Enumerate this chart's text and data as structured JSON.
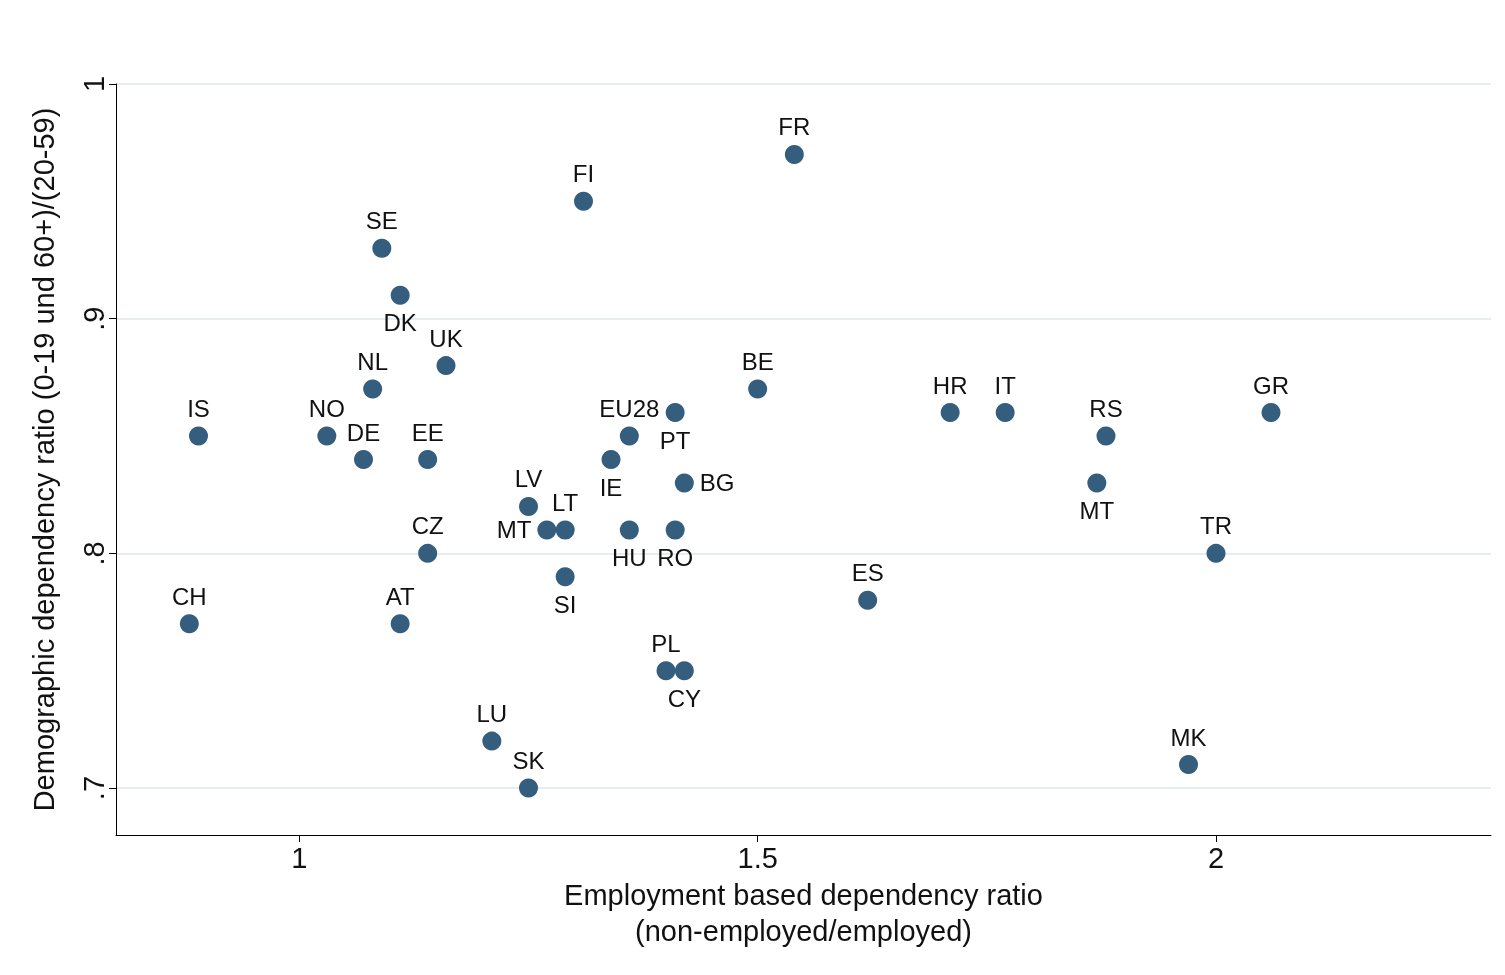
{
  "chart_data": {
    "type": "scatter",
    "xlabel": "Employment based dependency ratio\n(non-employed/employed)",
    "ylabel": "Demographic dependency ratio (0-19 und 60+)/(20-59)",
    "x": [
      0.89,
      0.88,
      1.03,
      1.07,
      1.08,
      1.09,
      1.11,
      1.16,
      1.14,
      1.14,
      1.11,
      1.21,
      1.25,
      1.25,
      1.27,
      1.29,
      1.29,
      1.34,
      1.31,
      1.36,
      1.41,
      1.42,
      1.36,
      1.41,
      1.4,
      1.42,
      1.5,
      1.54,
      1.62,
      1.71,
      1.77,
      1.88,
      1.87,
      2.06,
      2,
      1.97
    ],
    "values": [
      0.85,
      0.77,
      0.85,
      0.84,
      0.87,
      0.93,
      0.91,
      0.88,
      0.84,
      0.8,
      0.77,
      0.72,
      0.7,
      0.82,
      0.81,
      0.81,
      0.79,
      0.84,
      0.95,
      0.85,
      0.86,
      0.83,
      0.81,
      0.81,
      0.75,
      0.75,
      0.87,
      0.97,
      0.78,
      0.86,
      0.86,
      0.85,
      0.83,
      0.86,
      0.8,
      0.71
    ],
    "annotations": [
      {
        "text": "IS",
        "x": 0.89,
        "y": 0.85
      },
      {
        "text": "CH",
        "x": 0.88,
        "y": 0.77
      },
      {
        "text": "NO",
        "x": 1.03,
        "y": 0.85
      },
      {
        "text": "DE",
        "x": 1.07,
        "y": 0.84
      },
      {
        "text": "NL",
        "x": 1.08,
        "y": 0.87
      },
      {
        "text": "SE",
        "x": 1.09,
        "y": 0.93
      },
      {
        "text": "DK",
        "x": 1.11,
        "y": 0.91
      },
      {
        "text": "UK",
        "x": 1.16,
        "y": 0.88
      },
      {
        "text": "EE",
        "x": 1.14,
        "y": 0.84
      },
      {
        "text": "CZ",
        "x": 1.14,
        "y": 0.8
      },
      {
        "text": "AT",
        "x": 1.11,
        "y": 0.77
      },
      {
        "text": "LU",
        "x": 1.21,
        "y": 0.72
      },
      {
        "text": "SK",
        "x": 1.25,
        "y": 0.7
      },
      {
        "text": "LV",
        "x": 1.25,
        "y": 0.82
      },
      {
        "text": "MT",
        "x": 1.27,
        "y": 0.81
      },
      {
        "text": "LT",
        "x": 1.29,
        "y": 0.81
      },
      {
        "text": "SI",
        "x": 1.29,
        "y": 0.79
      },
      {
        "text": "IE",
        "x": 1.34,
        "y": 0.84
      },
      {
        "text": "FI",
        "x": 1.31,
        "y": 0.95
      },
      {
        "text": "EU28",
        "x": 1.36,
        "y": 0.85
      },
      {
        "text": "PT",
        "x": 1.41,
        "y": 0.86
      },
      {
        "text": "BG",
        "x": 1.42,
        "y": 0.83
      },
      {
        "text": "HU",
        "x": 1.36,
        "y": 0.81
      },
      {
        "text": "RO",
        "x": 1.41,
        "y": 0.81
      },
      {
        "text": "PL",
        "x": 1.4,
        "y": 0.75
      },
      {
        "text": "CY",
        "x": 1.42,
        "y": 0.75
      },
      {
        "text": "BE",
        "x": 1.5,
        "y": 0.87
      },
      {
        "text": "FR",
        "x": 1.54,
        "y": 0.97
      },
      {
        "text": "ES",
        "x": 1.62,
        "y": 0.78
      },
      {
        "text": "HR",
        "x": 1.71,
        "y": 0.86
      },
      {
        "text": "IT",
        "x": 1.77,
        "y": 0.86
      },
      {
        "text": "RS",
        "x": 1.88,
        "y": 0.85
      },
      {
        "text": "MT",
        "x": 1.87,
        "y": 0.83
      },
      {
        "text": "GR",
        "x": 2.06,
        "y": 0.86
      },
      {
        "text": "TR",
        "x": 2,
        "y": 0.8
      },
      {
        "text": "MK",
        "x": 1.97,
        "y": 0.71
      }
    ],
    "color": "#355d7e",
    "marker": "circle",
    "grid": "y",
    "xlim": [
      0.8,
      2.3
    ],
    "xticks": [
      1,
      1.5,
      2
    ],
    "ylim": [
      0.68,
      1
    ],
    "yticks": [
      {
        "value": 0.7,
        "label": ".7"
      },
      {
        "value": 0.8,
        "label": ".8"
      },
      {
        "value": 0.9,
        "label": ".9"
      },
      1
    ]
  }
}
